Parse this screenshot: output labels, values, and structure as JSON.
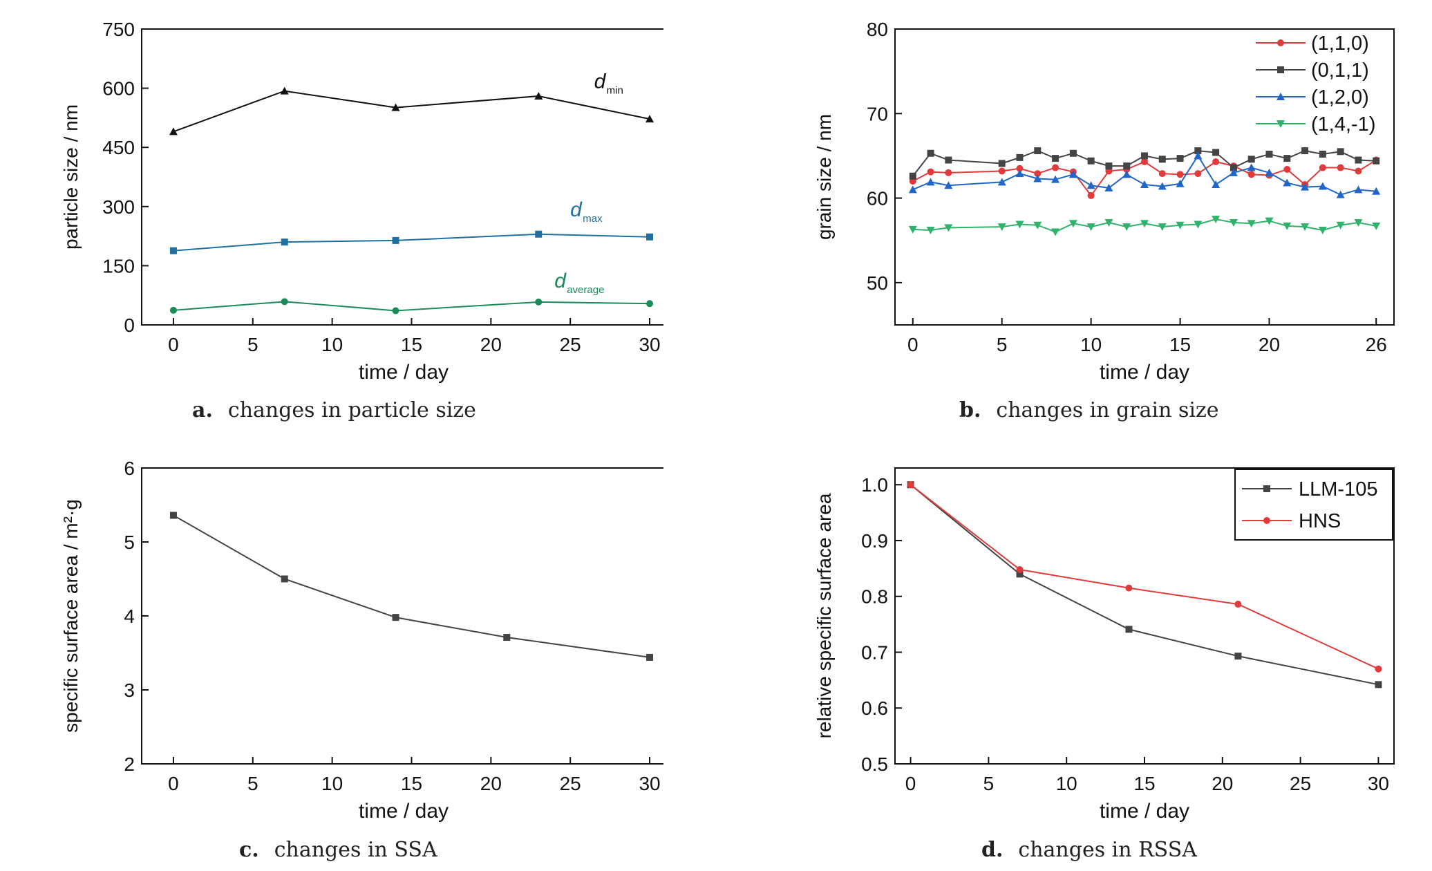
{
  "colors": {
    "black": "#111111",
    "teal_blue": "#1f6f9f",
    "green": "#1a8a5a",
    "red": "#e03a3a",
    "gray": "#444444",
    "blue": "#2066c8",
    "light_green": "#2fb36a"
  },
  "captions": {
    "a": {
      "letter": "a.",
      "text": "changes in particle size"
    },
    "b": {
      "letter": "b.",
      "text": "changes in grain size"
    },
    "c": {
      "letter": "c.",
      "text": "changes in SSA"
    },
    "d": {
      "letter": "d.",
      "text": "changes in RSSA"
    }
  },
  "chart_data": [
    {
      "id": "a",
      "type": "line",
      "xlabel": "time / day",
      "ylabel": "particle size / nm",
      "xlim": [
        -2,
        31
      ],
      "ylim": [
        0,
        750
      ],
      "xticks": [
        0,
        5,
        10,
        15,
        20,
        25,
        30
      ],
      "yticks": [
        0,
        150,
        300,
        450,
        600,
        750
      ],
      "grid": false,
      "series": [
        {
          "label_main": "d",
          "label_sub": "min",
          "label_at": [
            26.5,
            600
          ],
          "color": "#111111",
          "marker": "triangle",
          "x": [
            0,
            7,
            14,
            23,
            30
          ],
          "y": [
            490,
            593,
            551,
            580,
            522
          ]
        },
        {
          "label_main": "d",
          "label_sub": "max",
          "label_at": [
            25,
            275
          ],
          "color": "#1f6f9f",
          "marker": "square",
          "x": [
            0,
            7,
            14,
            23,
            30
          ],
          "y": [
            188,
            210,
            214,
            230,
            223
          ]
        },
        {
          "label_main": "d",
          "label_sub": "average",
          "label_at": [
            24,
            95
          ],
          "color": "#1a8a5a",
          "marker": "circle",
          "x": [
            0,
            7,
            14,
            23,
            30
          ],
          "y": [
            37,
            59,
            36,
            58,
            54
          ]
        }
      ]
    },
    {
      "id": "b",
      "type": "line",
      "xlabel": "time / day",
      "ylabel": "grain size / nm",
      "xlim": [
        -1,
        27
      ],
      "ylim": [
        45,
        80
      ],
      "xticks": [
        0,
        5,
        10,
        15,
        20,
        26
      ],
      "yticks": [
        50,
        60,
        70,
        80
      ],
      "grid": false,
      "legend": "top-right",
      "series": [
        {
          "name": "(1,1,0)",
          "color": "#e03a3a",
          "marker": "circle",
          "x": [
            0,
            1,
            2,
            5,
            6,
            7,
            8,
            9,
            10,
            11,
            12,
            13,
            14,
            15,
            16,
            17,
            18,
            19,
            20,
            21,
            22,
            23,
            24,
            25,
            26
          ],
          "y": [
            62.0,
            63.1,
            63.0,
            63.2,
            63.5,
            62.9,
            63.6,
            63.1,
            60.3,
            63.2,
            63.4,
            64.3,
            62.9,
            62.8,
            62.9,
            64.3,
            63.8,
            62.8,
            62.7,
            63.4,
            61.6,
            63.6,
            63.6,
            63.2,
            64.5
          ]
        },
        {
          "name": "(0,1,1)",
          "color": "#444444",
          "marker": "square",
          "x": [
            0,
            1,
            2,
            5,
            6,
            7,
            8,
            9,
            10,
            11,
            12,
            13,
            14,
            15,
            16,
            17,
            18,
            19,
            20,
            21,
            22,
            23,
            24,
            25,
            26
          ],
          "y": [
            62.6,
            65.3,
            64.5,
            64.1,
            64.8,
            65.6,
            64.7,
            65.3,
            64.4,
            63.8,
            63.8,
            65.0,
            64.6,
            64.7,
            65.6,
            65.4,
            63.6,
            64.6,
            65.2,
            64.7,
            65.6,
            65.2,
            65.5,
            64.5,
            64.4
          ]
        },
        {
          "name": "(1,2,0)",
          "color": "#2066c8",
          "marker": "triangle",
          "x": [
            0,
            1,
            2,
            5,
            6,
            7,
            8,
            9,
            10,
            11,
            12,
            13,
            14,
            15,
            16,
            17,
            18,
            19,
            20,
            21,
            22,
            23,
            24,
            25,
            26
          ],
          "y": [
            61.0,
            61.9,
            61.5,
            61.9,
            62.9,
            62.3,
            62.2,
            62.8,
            61.5,
            61.2,
            62.8,
            61.6,
            61.4,
            61.7,
            65.0,
            61.6,
            63.0,
            63.6,
            63.0,
            61.8,
            61.3,
            61.4,
            60.4,
            61.0,
            60.8
          ]
        },
        {
          "name": "(1,4,-1)",
          "color": "#2fb36a",
          "marker": "triangle-down",
          "x": [
            0,
            1,
            2,
            5,
            6,
            7,
            8,
            9,
            10,
            11,
            12,
            13,
            14,
            15,
            16,
            17,
            18,
            19,
            20,
            21,
            22,
            23,
            24,
            25,
            26
          ],
          "y": [
            56.3,
            56.2,
            56.5,
            56.6,
            56.9,
            56.8,
            56.0,
            57.0,
            56.6,
            57.1,
            56.6,
            57.0,
            56.6,
            56.8,
            56.9,
            57.5,
            57.1,
            57.0,
            57.3,
            56.7,
            56.6,
            56.2,
            56.8,
            57.1,
            56.7
          ]
        }
      ]
    },
    {
      "id": "c",
      "type": "line",
      "xlabel": "time / day",
      "ylabel": "specific surface area / m²·g",
      "xlim": [
        -2,
        31
      ],
      "ylim": [
        2,
        6
      ],
      "xticks": [
        0,
        5,
        10,
        15,
        20,
        25,
        30
      ],
      "yticks": [
        2,
        3,
        4,
        5,
        6
      ],
      "grid": false,
      "series": [
        {
          "color": "#444444",
          "marker": "square",
          "x": [
            0,
            7,
            14,
            21,
            30
          ],
          "y": [
            5.36,
            4.5,
            3.98,
            3.71,
            3.44
          ]
        }
      ]
    },
    {
      "id": "d",
      "type": "line",
      "xlabel": "time / day",
      "ylabel": "relative specific surface area",
      "xlim": [
        -1,
        31
      ],
      "ylim": [
        0.5,
        1.03
      ],
      "xticks": [
        0,
        5,
        10,
        15,
        20,
        25,
        30
      ],
      "yticks": [
        "0.5",
        "0.6",
        "0.7",
        "0.8",
        "0.9",
        "1.0"
      ],
      "grid": false,
      "legend": "top-right",
      "series": [
        {
          "name": "LLM-105",
          "color": "#444444",
          "marker": "square",
          "x": [
            0,
            7,
            14,
            21,
            30
          ],
          "y": [
            1.0,
            0.84,
            0.741,
            0.693,
            0.642
          ]
        },
        {
          "name": "HNS",
          "color": "#e03a3a",
          "marker": "circle",
          "x": [
            0,
            7,
            14,
            21,
            30
          ],
          "y": [
            1.0,
            0.848,
            0.815,
            0.786,
            0.67
          ]
        }
      ]
    }
  ]
}
